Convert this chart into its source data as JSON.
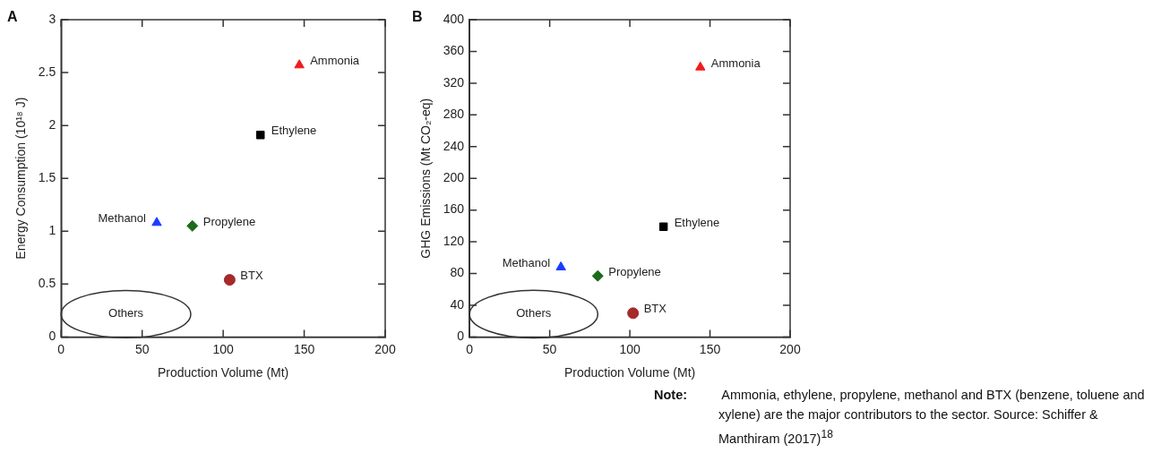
{
  "chart_data": [
    {
      "type": "scatter",
      "title": "A",
      "xlabel": "Production Volume (Mt)",
      "ylabel": "Energy Consumption (10¹⁸ J)",
      "xlim": [
        0,
        200
      ],
      "xticks": [
        0,
        50,
        100,
        150,
        200
      ],
      "ylim": [
        0,
        3
      ],
      "yticks": [
        0,
        0.5,
        1,
        1.5,
        2,
        2.5,
        3
      ],
      "legend": false,
      "series": [
        {
          "name": "Ammonia",
          "color": "#ee1c1c",
          "marker": "triangle",
          "x": [
            147
          ],
          "values": [
            2.57
          ]
        },
        {
          "name": "Ethylene",
          "color": "#000000",
          "marker": "square",
          "x": [
            123
          ],
          "values": [
            1.91
          ]
        },
        {
          "name": "Methanol",
          "color": "#1a3cff",
          "marker": "triangle",
          "x": [
            59
          ],
          "values": [
            1.08
          ]
        },
        {
          "name": "Propylene",
          "color": "#1a6b1a",
          "marker": "diamond",
          "x": [
            81
          ],
          "values": [
            1.05
          ]
        },
        {
          "name": "BTX",
          "color": "#a52a2a",
          "marker": "circle",
          "x": [
            104
          ],
          "values": [
            0.54
          ]
        }
      ],
      "annotations": [
        "Others"
      ]
    },
    {
      "type": "scatter",
      "title": "B",
      "xlabel": "Production Volume (Mt)",
      "ylabel": "GHG Emissions (Mt CO₂-eq)",
      "xlim": [
        0,
        200
      ],
      "xticks": [
        0,
        50,
        100,
        150,
        200
      ],
      "ylim": [
        0,
        400
      ],
      "yticks": [
        0,
        40,
        80,
        120,
        160,
        200,
        240,
        280,
        320,
        360,
        400
      ],
      "legend": false,
      "series": [
        {
          "name": "Ammonia",
          "color": "#ee1c1c",
          "marker": "triangle",
          "x": [
            144
          ],
          "values": [
            340
          ]
        },
        {
          "name": "Ethylene",
          "color": "#000000",
          "marker": "square",
          "x": [
            121
          ],
          "values": [
            139
          ]
        },
        {
          "name": "Methanol",
          "color": "#1a3cff",
          "marker": "triangle",
          "x": [
            57
          ],
          "values": [
            88
          ]
        },
        {
          "name": "Propylene",
          "color": "#1a6b1a",
          "marker": "diamond",
          "x": [
            80
          ],
          "values": [
            77
          ]
        },
        {
          "name": "BTX",
          "color": "#a52a2a",
          "marker": "circle",
          "x": [
            102
          ],
          "values": [
            30
          ]
        }
      ],
      "annotations": [
        "Others",
        "Note: Ammonia, ethylene, propylene, methanol and BTX (benzene, toluene and xylene) are the major contributors to the sector. Source: Schiffer & Manthiram (2017)$^{18}$"
      ]
    }
  ]
}
